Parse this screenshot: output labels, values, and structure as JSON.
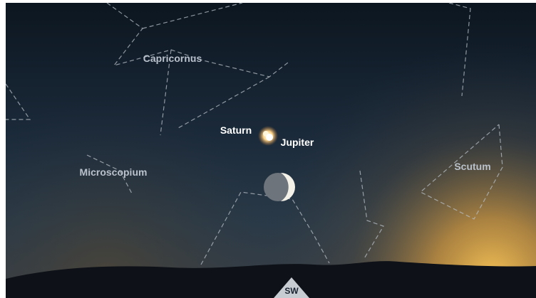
{
  "constellations": [
    "Capricornus",
    "Microscopium",
    "Scutum"
  ],
  "planets": [
    "Saturn",
    "Jupiter"
  ],
  "direction": "SW"
}
